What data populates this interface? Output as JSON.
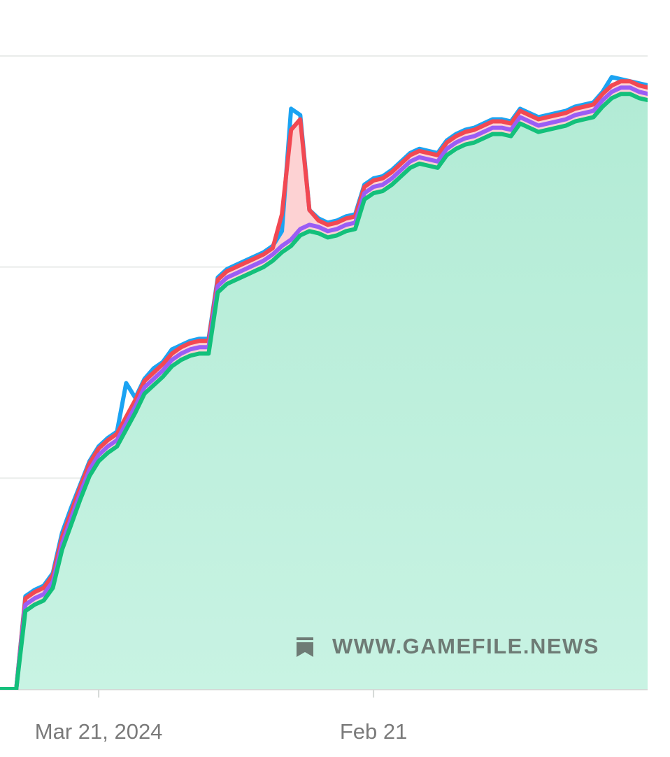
{
  "chart_data": {
    "type": "line",
    "watermark": "WWW.GAMEFILE.NEWS",
    "categories": [
      null,
      null,
      null,
      null,
      null,
      null,
      null,
      null,
      null,
      null,
      null,
      "Mar 21, 2024",
      null,
      null,
      null,
      null,
      null,
      null,
      null,
      null,
      null,
      null,
      null,
      null,
      null,
      null,
      null,
      null,
      null,
      null,
      null,
      null,
      null,
      null,
      null,
      null,
      null,
      null,
      null,
      null,
      null,
      "Feb 21",
      null,
      null,
      null,
      null,
      null,
      null,
      null,
      null,
      null,
      null,
      null,
      null,
      null,
      null,
      null,
      null,
      null,
      null,
      null,
      null,
      null,
      null,
      null,
      null,
      null,
      null,
      null,
      null,
      null,
      null
    ],
    "ylim": [
      0,
      3
    ],
    "yticks": [
      0,
      1,
      2,
      3
    ],
    "y_tick_labels": false,
    "grid": true,
    "series": [
      {
        "color": "#1ba3f2",
        "values": [
          0,
          0,
          0,
          0.44,
          0.47,
          0.49,
          0.55,
          0.74,
          0.86,
          0.97,
          1.08,
          1.15,
          1.19,
          1.22,
          1.45,
          1.38,
          1.47,
          1.52,
          1.55,
          1.61,
          1.63,
          1.65,
          1.66,
          1.66,
          1.95,
          1.99,
          2.01,
          2.03,
          2.05,
          2.07,
          2.1,
          2.17,
          2.75,
          2.72,
          2.27,
          2.23,
          2.21,
          2.22,
          2.24,
          2.25,
          2.39,
          2.42,
          2.43,
          2.46,
          2.5,
          2.54,
          2.56,
          2.55,
          2.54,
          2.6,
          2.63,
          2.65,
          2.66,
          2.68,
          2.7,
          2.7,
          2.69,
          2.75,
          2.73,
          2.71,
          2.72,
          2.73,
          2.74,
          2.76,
          2.77,
          2.78,
          2.83,
          2.9,
          2.89,
          2.88,
          2.87,
          2.86
        ]
      },
      {
        "color": "#f24852",
        "fill": "#fdd2d3",
        "values": [
          0,
          0,
          0,
          0.43,
          0.46,
          0.48,
          0.54,
          0.72,
          0.84,
          0.96,
          1.07,
          1.14,
          1.18,
          1.21,
          1.29,
          1.37,
          1.46,
          1.5,
          1.54,
          1.59,
          1.62,
          1.64,
          1.65,
          1.65,
          1.94,
          1.98,
          2.0,
          2.02,
          2.04,
          2.06,
          2.09,
          2.25,
          2.65,
          2.7,
          2.27,
          2.22,
          2.2,
          2.21,
          2.23,
          2.24,
          2.38,
          2.41,
          2.42,
          2.45,
          2.49,
          2.53,
          2.55,
          2.54,
          2.53,
          2.59,
          2.62,
          2.64,
          2.65,
          2.67,
          2.69,
          2.69,
          2.68,
          2.74,
          2.72,
          2.7,
          2.71,
          2.72,
          2.73,
          2.75,
          2.76,
          2.77,
          2.82,
          2.86,
          2.88,
          2.88,
          2.86,
          2.85
        ]
      },
      {
        "color": "#9a5df5",
        "values": [
          0,
          0,
          0,
          0.4,
          0.43,
          0.45,
          0.51,
          0.69,
          0.81,
          0.93,
          1.04,
          1.11,
          1.15,
          1.18,
          1.26,
          1.34,
          1.43,
          1.47,
          1.51,
          1.56,
          1.59,
          1.61,
          1.62,
          1.62,
          1.91,
          1.95,
          1.97,
          1.99,
          2.01,
          2.03,
          2.06,
          2.1,
          2.13,
          2.18,
          2.2,
          2.19,
          2.17,
          2.18,
          2.2,
          2.21,
          2.35,
          2.38,
          2.39,
          2.42,
          2.46,
          2.5,
          2.52,
          2.51,
          2.5,
          2.56,
          2.59,
          2.61,
          2.62,
          2.64,
          2.66,
          2.66,
          2.65,
          2.71,
          2.69,
          2.67,
          2.68,
          2.69,
          2.7,
          2.72,
          2.73,
          2.74,
          2.79,
          2.83,
          2.85,
          2.85,
          2.83,
          2.82
        ]
      },
      {
        "color": "#13c07b",
        "fill": "url(#mint)",
        "values": [
          0,
          0,
          0,
          0.37,
          0.4,
          0.42,
          0.48,
          0.66,
          0.78,
          0.9,
          1.01,
          1.08,
          1.12,
          1.15,
          1.23,
          1.31,
          1.4,
          1.44,
          1.48,
          1.53,
          1.56,
          1.58,
          1.59,
          1.59,
          1.88,
          1.92,
          1.94,
          1.96,
          1.98,
          2.0,
          2.03,
          2.07,
          2.1,
          2.15,
          2.17,
          2.16,
          2.14,
          2.15,
          2.17,
          2.18,
          2.32,
          2.35,
          2.36,
          2.39,
          2.43,
          2.47,
          2.49,
          2.48,
          2.47,
          2.53,
          2.56,
          2.58,
          2.59,
          2.61,
          2.63,
          2.63,
          2.62,
          2.68,
          2.66,
          2.64,
          2.65,
          2.66,
          2.67,
          2.69,
          2.7,
          2.71,
          2.76,
          2.8,
          2.82,
          2.82,
          2.8,
          2.79
        ]
      }
    ]
  }
}
